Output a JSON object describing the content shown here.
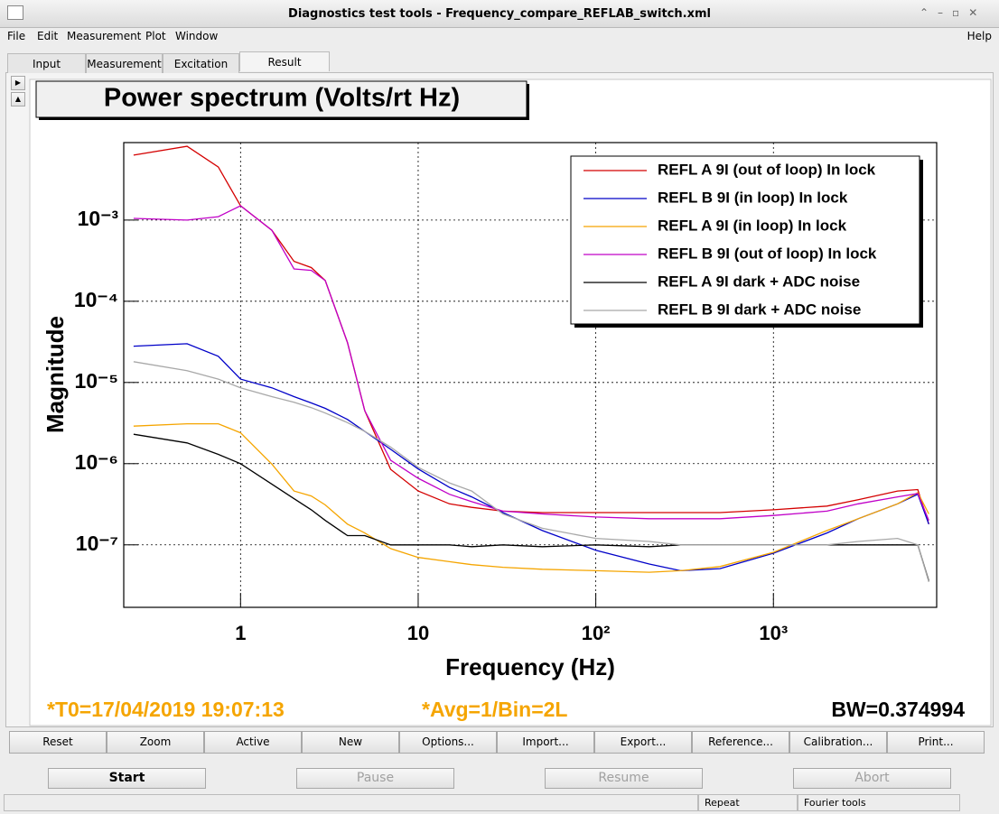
{
  "window": {
    "title": "Diagnostics test tools - Frequency_compare_REFLAB_switch.xml"
  },
  "menu": [
    "File",
    "Edit",
    "Measurement",
    "Plot",
    "Window"
  ],
  "help": "Help",
  "tabs": [
    "Input",
    "Measurement",
    "Excitation",
    "Result"
  ],
  "chart_data": {
    "type": "line",
    "title": "Power spectrum (Volts/rt Hz)",
    "xlabel": "Frequency (Hz)",
    "ylabel": "Magnitude",
    "log_x": true,
    "log_y": true,
    "grid": true,
    "legend": "top right",
    "xlim": [
      0.22,
      8300
    ],
    "ylim": [
      1.7e-08,
      0.009
    ],
    "xticks": [
      1,
      10,
      {
        "value": 100,
        "label": "10²"
      },
      {
        "value": 1000,
        "label": "10³"
      }
    ],
    "yticks": [
      {
        "value": 1e-07,
        "label": "10⁻⁷"
      },
      {
        "value": 1e-06,
        "label": "10⁻⁶"
      },
      {
        "value": 1e-05,
        "label": "10⁻⁵"
      },
      {
        "value": 0.0001,
        "label": "10⁻⁴"
      },
      {
        "value": 0.001,
        "label": "10⁻³"
      }
    ],
    "x": [
      0.25,
      0.5,
      0.75,
      1,
      1.5,
      2,
      2.5,
      3,
      4,
      5,
      7,
      10,
      15,
      20,
      30,
      50,
      100,
      200,
      300,
      500,
      1000,
      2000,
      3000,
      5000,
      6500,
      7500
    ],
    "series": [
      {
        "name": "REFL A 9I (out of loop) In lock",
        "color": "#d40000",
        "values": [
          0.0063,
          0.0081,
          0.0045,
          0.0015,
          0.00075,
          0.00031,
          0.00026,
          0.00018,
          3.1e-05,
          4.5e-06,
          8.5e-07,
          4.6e-07,
          3.2e-07,
          2.9e-07,
          2.6e-07,
          2.5e-07,
          2.5e-07,
          2.5e-07,
          2.5e-07,
          2.5e-07,
          2.7e-07,
          3e-07,
          3.6e-07,
          4.6e-07,
          4.8e-07,
          1.8e-07
        ]
      },
      {
        "name": "REFL B 9I (in loop) In lock",
        "color": "#0000c8",
        "values": [
          2.8e-05,
          3e-05,
          2.1e-05,
          1.1e-05,
          8.6e-06,
          6.7e-06,
          5.6e-06,
          4.8e-06,
          3.5e-06,
          2.5e-06,
          1.5e-06,
          8.6e-07,
          5.1e-07,
          3.9e-07,
          2.5e-07,
          1.5e-07,
          8.6e-08,
          5.8e-08,
          4.8e-08,
          5.1e-08,
          7.9e-08,
          1.4e-07,
          2.1e-07,
          3.2e-07,
          4.2e-07,
          1.8e-07
        ]
      },
      {
        "name": "REFL A 9I (in loop) In lock",
        "color": "#f5a500",
        "values": [
          2.9e-06,
          3.1e-06,
          3.1e-06,
          2.4e-06,
          9.9e-07,
          4.6e-07,
          4e-07,
          3.1e-07,
          1.8e-07,
          1.4e-07,
          9e-08,
          7e-08,
          6.2e-08,
          5.7e-08,
          5.3e-08,
          5e-08,
          4.8e-08,
          4.6e-08,
          4.8e-08,
          5.4e-08,
          8.1e-08,
          1.5e-07,
          2.1e-07,
          3.2e-07,
          4.4e-07,
          2.4e-07
        ]
      },
      {
        "name": "REFL B 9I (out of loop) In lock",
        "color": "#c000c8",
        "values": [
          0.00105,
          0.001,
          0.0011,
          0.0015,
          0.00075,
          0.00025,
          0.00024,
          0.00018,
          3.1e-05,
          4.5e-06,
          1.1e-06,
          6.6e-07,
          4.2e-07,
          3.4e-07,
          2.6e-07,
          2.4e-07,
          2.2e-07,
          2.1e-07,
          2.1e-07,
          2.1e-07,
          2.3e-07,
          2.6e-07,
          3.2e-07,
          3.9e-07,
          4.3e-07,
          2e-07
        ]
      },
      {
        "name": "REFL A 9I dark + ADC noise",
        "color": "#000000",
        "values": [
          2.3e-06,
          1.8e-06,
          1.3e-06,
          1e-06,
          5.6e-07,
          3.7e-07,
          2.7e-07,
          2e-07,
          1.3e-07,
          1.3e-07,
          1e-07,
          1e-07,
          1e-07,
          9.5e-08,
          1e-07,
          9.5e-08,
          1e-07,
          9.5e-08,
          1e-07,
          1e-07,
          1e-07,
          1e-07,
          1e-07,
          1e-07,
          1e-07,
          3.6e-08
        ]
      },
      {
        "name": "REFL B 9I dark + ADC noise",
        "color": "#a8a8a8",
        "values": [
          1.8e-05,
          1.4e-05,
          1.1e-05,
          8.6e-06,
          6.7e-06,
          5.7e-06,
          4.9e-06,
          4.2e-06,
          3.2e-06,
          2.5e-06,
          1.6e-06,
          9e-07,
          5.8e-07,
          4.6e-07,
          2.4e-07,
          1.6e-07,
          1.2e-07,
          1.1e-07,
          1e-07,
          1e-07,
          1e-07,
          1e-07,
          1.1e-07,
          1.2e-07,
          1e-07,
          3.5e-08
        ]
      }
    ],
    "annotations": [
      "*T0=17/04/2019 19:07:13",
      "*Avg=1/Bin=2L",
      "BW=0.374994"
    ]
  },
  "toolbar": [
    "Reset",
    "Zoom",
    "Active",
    "New",
    "Options...",
    "Import...",
    "Export...",
    "Reference...",
    "Calibration...",
    "Print..."
  ],
  "controls": [
    "Start",
    "Pause",
    "Resume",
    "Abort"
  ],
  "status": [
    "Repeat",
    "Fourier tools"
  ]
}
